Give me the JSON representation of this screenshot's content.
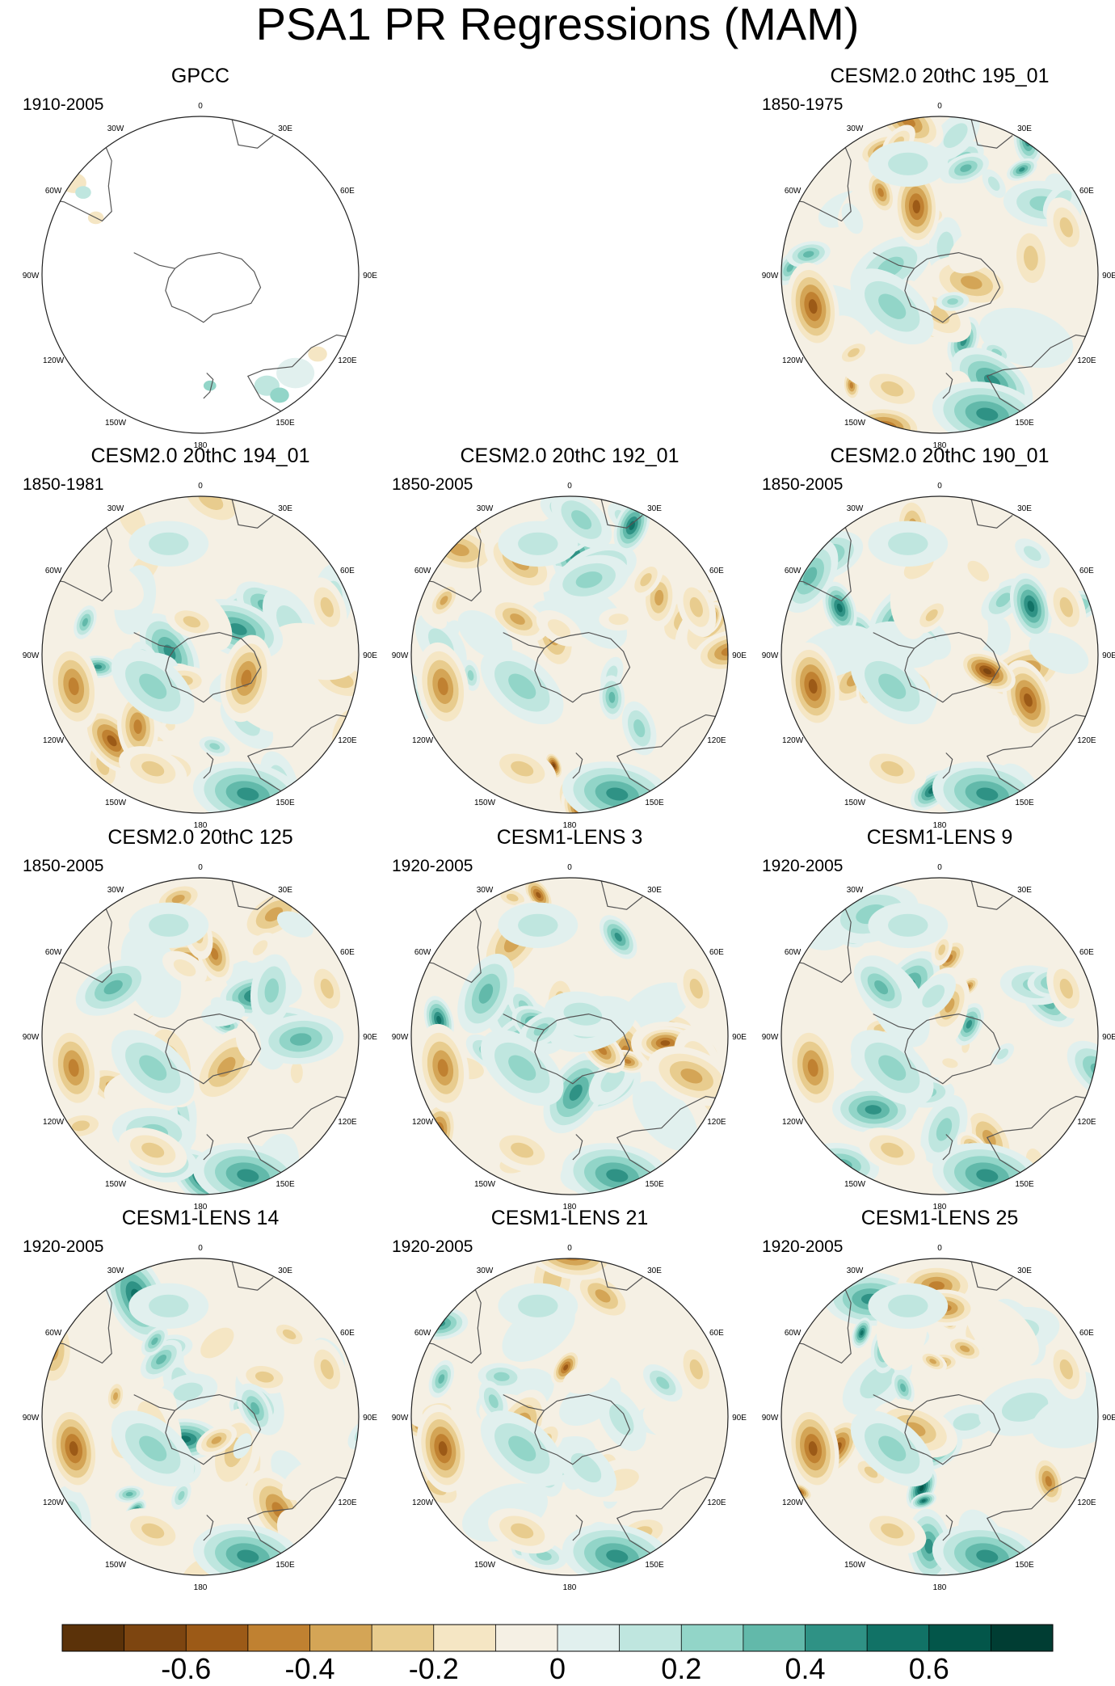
{
  "title": "PSA1 PR Regressions (MAM)",
  "chart_data": {
    "type": "heatmap",
    "projection": "south polar stereographic, circular",
    "variable": "PR regression onto PSA1",
    "season": "MAM",
    "longitude_labels": [
      "0",
      "30E",
      "60E",
      "90E",
      "120E",
      "150E",
      "180",
      "150W",
      "120W",
      "90W",
      "60W",
      "30W"
    ],
    "colorbar": {
      "levels": [
        -0.7,
        -0.6,
        -0.5,
        -0.4,
        -0.3,
        -0.2,
        -0.1,
        0,
        0.1,
        0.2,
        0.3,
        0.4,
        0.5,
        0.6,
        0.7
      ],
      "tick_labels": [
        "-0.6",
        "-0.4",
        "-0.2",
        "0",
        "0.2",
        "0.4",
        "0.6"
      ],
      "tick_values": [
        -0.6,
        -0.4,
        -0.2,
        0,
        0.2,
        0.4,
        0.6
      ],
      "colors": [
        "#5b3209",
        "#7d4510",
        "#9c5a17",
        "#c08131",
        "#d4a556",
        "#e8cc8e",
        "#f5e6c4",
        "#f5f0e4",
        "#e1f0ee",
        "#bfe6df",
        "#92d5c8",
        "#62b9aa",
        "#2f9285",
        "#117266",
        "#03564a",
        "#003d33"
      ]
    },
    "panels": [
      {
        "title": "GPCC",
        "years": "1910-2005",
        "slot": 0,
        "observed": true
      },
      {
        "title": "CESM2.0 20thC 195_01",
        "years": "1850-1975",
        "slot": 2,
        "seed": 11
      },
      {
        "title": "CESM2.0 20thC 194_01",
        "years": "1850-1981",
        "slot": 3,
        "seed": 23
      },
      {
        "title": "CESM2.0 20thC 192_01",
        "years": "1850-2005",
        "slot": 4,
        "seed": 37
      },
      {
        "title": "CESM2.0 20thC 190_01",
        "years": "1850-2005",
        "slot": 5,
        "seed": 41
      },
      {
        "title": "CESM2.0 20thC 125",
        "years": "1850-2005",
        "slot": 6,
        "seed": 53
      },
      {
        "title": "CESM1-LENS 3",
        "years": "1920-2005",
        "slot": 7,
        "seed": 67
      },
      {
        "title": "CESM1-LENS 9",
        "years": "1920-2005",
        "slot": 8,
        "seed": 71
      },
      {
        "title": "CESM1-LENS 14",
        "years": "1920-2005",
        "slot": 9,
        "seed": 83
      },
      {
        "title": "CESM1-LENS 21",
        "years": "1920-2005",
        "slot": 10,
        "seed": 97
      },
      {
        "title": "CESM1-LENS 25",
        "years": "1920-2005",
        "slot": 11,
        "seed": 103
      }
    ]
  }
}
